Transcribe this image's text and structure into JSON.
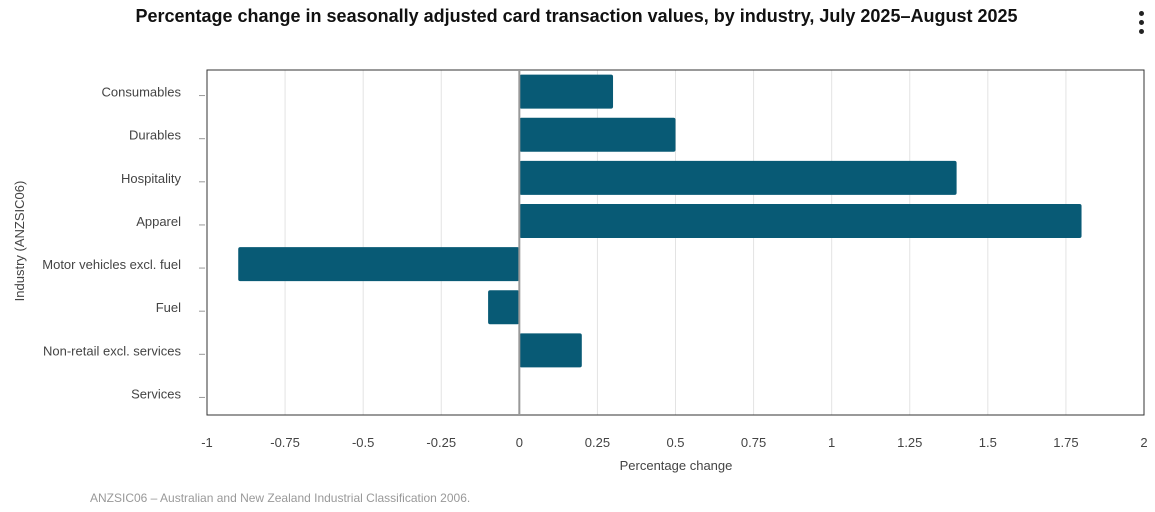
{
  "title": "Percentage change in seasonally adjusted card transaction values, by industry, July 2025–August 2025",
  "menu_icon": "vertical-ellipsis-icon",
  "footnote": "ANZSIC06 – Australian and New Zealand Industrial Classification 2006.",
  "chart_data": {
    "type": "bar",
    "orientation": "horizontal",
    "title": "Percentage change in seasonally adjusted card transaction values, by industry, July 2025–August 2025",
    "xlabel": "Percentage change",
    "ylabel": "Industry (ANZSIC06)",
    "categories": [
      "Consumables",
      "Durables",
      "Hospitality",
      "Apparel",
      "Motor vehicles excl. fuel",
      "Fuel",
      "Non-retail excl. services",
      "Services"
    ],
    "values": [
      0.3,
      0.5,
      1.4,
      1.8,
      -0.9,
      -0.1,
      0.2,
      0
    ],
    "xlim": [
      -1,
      2
    ],
    "xticks": [
      -1,
      -0.75,
      -0.5,
      -0.25,
      0,
      0.25,
      0.5,
      0.75,
      1,
      1.25,
      1.5,
      1.75,
      2
    ],
    "xtick_labels": [
      "-1",
      "-0.75",
      "-0.5",
      "-0.25",
      "0",
      "0.25",
      "0.5",
      "0.75",
      "1",
      "1.25",
      "1.5",
      "1.75",
      "2"
    ],
    "grid": "vertical",
    "legend": "none",
    "bar_color": "#085a75"
  }
}
